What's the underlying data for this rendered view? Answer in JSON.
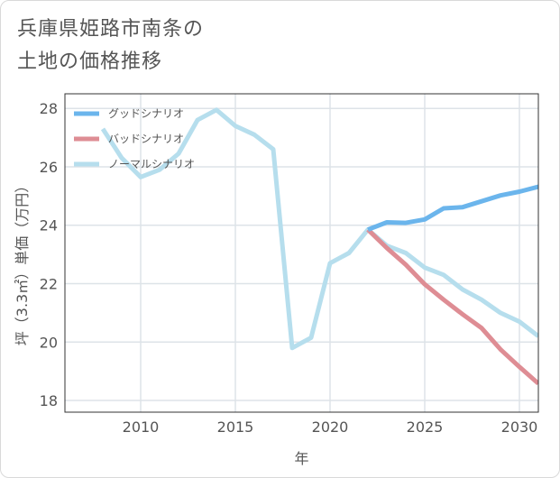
{
  "title": {
    "line1": "兵庫県姫路市南条の",
    "line2": "土地の価格推移"
  },
  "chart_data": {
    "type": "line",
    "xlabel": "年",
    "ylabel": "坪（3.3㎡）単価（万円）",
    "xlim": [
      2006,
      2031
    ],
    "ylim": [
      17.6,
      28.5
    ],
    "xticks": [
      2010,
      2015,
      2020,
      2025,
      2030
    ],
    "yticks": [
      18,
      20,
      22,
      24,
      26,
      28
    ],
    "grid": true,
    "legend_position": "top-left",
    "series": [
      {
        "name": "グッドシナリオ",
        "color": "#6bb5ec",
        "x": [
          2022,
          2023,
          2024,
          2025,
          2026,
          2027,
          2028,
          2029,
          2030,
          2031
        ],
        "values": [
          23.85,
          24.1,
          24.08,
          24.2,
          24.58,
          24.62,
          24.82,
          25.02,
          25.15,
          25.32
        ]
      },
      {
        "name": "バッドシナリオ",
        "color": "#de8d94",
        "x": [
          2022,
          2023,
          2024,
          2025,
          2026,
          2027,
          2028,
          2029,
          2030,
          2031
        ],
        "values": [
          23.85,
          23.22,
          22.65,
          21.98,
          21.45,
          20.95,
          20.48,
          19.75,
          19.15,
          18.58
        ]
      },
      {
        "name": "ノーマルシナリオ",
        "color": "#b6deed",
        "x": [
          2008,
          2009,
          2010,
          2011,
          2012,
          2013,
          2014,
          2015,
          2016,
          2017,
          2018,
          2019,
          2020,
          2021,
          2022,
          2023,
          2024,
          2025,
          2026,
          2027,
          2028,
          2029,
          2030,
          2031
        ],
        "values": [
          27.3,
          26.3,
          25.65,
          25.9,
          26.45,
          27.6,
          27.95,
          27.4,
          27.1,
          26.6,
          19.8,
          20.15,
          22.7,
          23.05,
          23.85,
          23.3,
          23.05,
          22.55,
          22.3,
          21.8,
          21.45,
          21.0,
          20.7,
          20.2
        ]
      }
    ]
  }
}
